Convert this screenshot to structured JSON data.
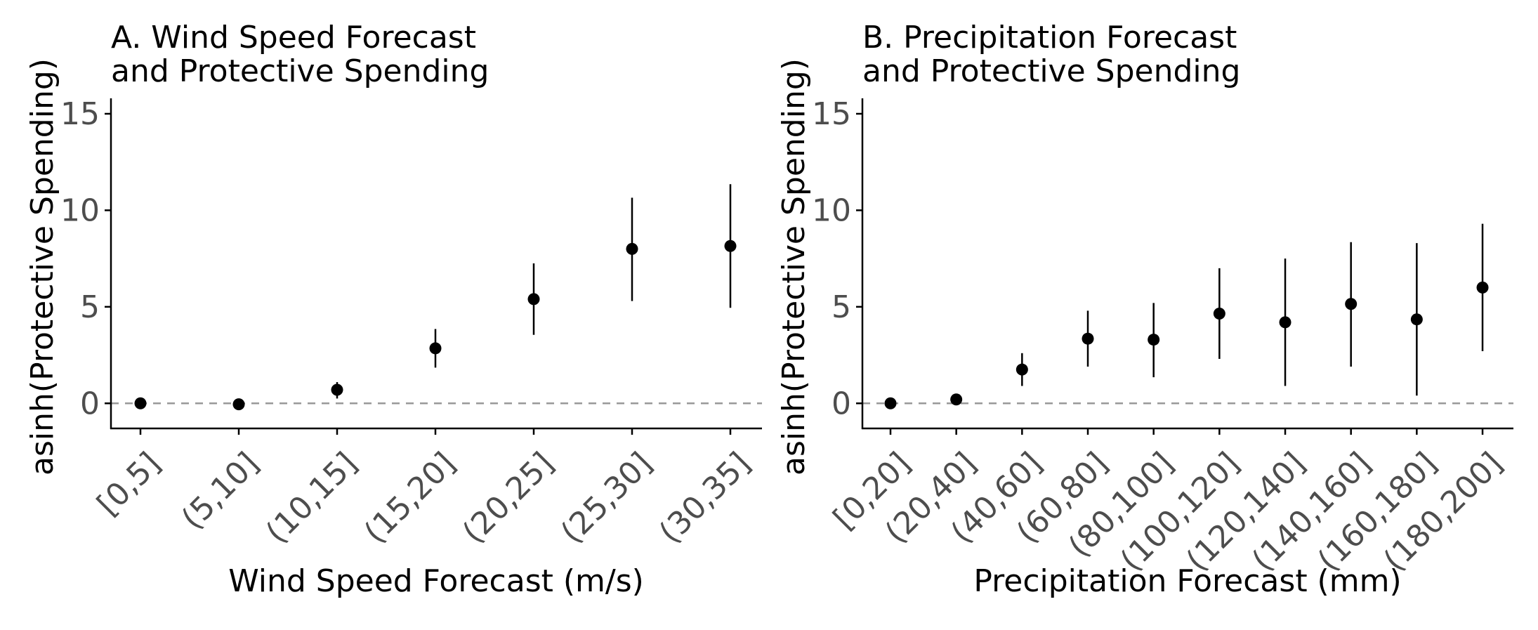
{
  "chart_data": [
    {
      "type": "scatter",
      "title_lines": [
        "A. Wind Speed Forecast",
        "and Protective Spending"
      ],
      "xlabel": "Wind Speed Forecast (m/s)",
      "ylabel": "asinh(Protective Spending)",
      "categories": [
        "[0,5]",
        "(5,10]",
        "(10,15]",
        "(15,20]",
        "(20,25]",
        "(25,30]",
        "(30,35]"
      ],
      "values": [
        0.0,
        -0.05,
        0.7,
        2.85,
        5.4,
        8.0,
        8.15
      ],
      "ci_low": [
        -0.15,
        -0.2,
        0.25,
        1.85,
        3.55,
        5.3,
        4.95
      ],
      "ci_high": [
        0.15,
        0.1,
        1.1,
        3.85,
        7.25,
        10.65,
        11.35
      ],
      "yticks": [
        0,
        5,
        10,
        15
      ],
      "ylim": [
        -1.3,
        15.8
      ],
      "reference_line": 0,
      "grid": false
    },
    {
      "type": "scatter",
      "title_lines": [
        "B. Precipitation Forecast",
        "and Protective Spending"
      ],
      "xlabel": "Precipitation Forecast (mm)",
      "ylabel": "asinh(Protective Spending)",
      "categories": [
        "[0,20]",
        "(20,40]",
        "(40,60]",
        "(60,80]",
        "(80,100]",
        "(100,120]",
        "(120,140]",
        "(140,160]",
        "(160,180]",
        "(180,200]"
      ],
      "values": [
        0.0,
        0.2,
        1.75,
        3.35,
        3.3,
        4.65,
        4.2,
        5.15,
        4.35,
        6.0
      ],
      "ci_low": [
        -0.15,
        -0.1,
        0.9,
        1.9,
        1.35,
        2.3,
        0.9,
        1.9,
        0.4,
        2.7
      ],
      "ci_high": [
        0.15,
        0.5,
        2.6,
        4.8,
        5.2,
        7.0,
        7.5,
        8.35,
        8.3,
        9.3
      ],
      "yticks": [
        0,
        5,
        10,
        15
      ],
      "ylim": [
        -1.3,
        15.8
      ],
      "reference_line": 0,
      "grid": false
    }
  ],
  "colors": {
    "point": "#000000",
    "errorbar": "#000000",
    "reference_line": "#999999",
    "axis": "#000000",
    "tick_label": "#4d4d4d"
  }
}
